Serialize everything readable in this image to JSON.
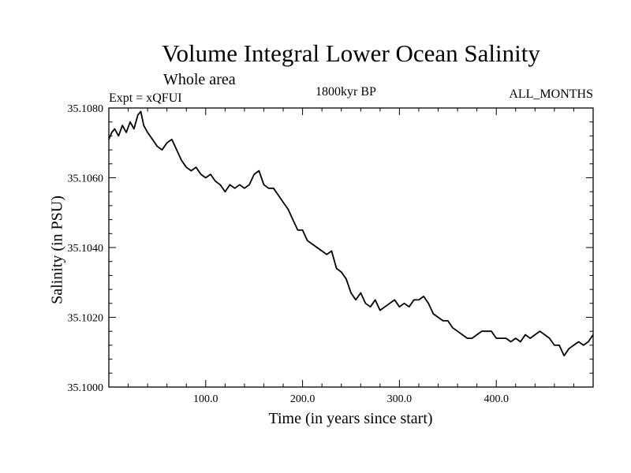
{
  "chart_data": {
    "type": "line",
    "title": "Volume Integral Lower Ocean Salinity",
    "subtitle": "Whole area",
    "experiment_label": "Expt = xQFUI",
    "center_label": "1800kyr BP",
    "right_label": "ALL_MONTHS",
    "xlabel": "Time (in years since start)",
    "ylabel": "Salinity (in PSU)",
    "xlim": [
      0,
      500
    ],
    "ylim": [
      35.1,
      35.108
    ],
    "x_ticks": [
      100.0,
      200.0,
      300.0,
      400.0
    ],
    "x_tick_labels": [
      "100.0",
      "200.0",
      "300.0",
      "400.0"
    ],
    "y_ticks": [
      35.1,
      35.102,
      35.104,
      35.106,
      35.108
    ],
    "y_tick_labels": [
      "35.1000",
      "35.1020",
      "35.1040",
      "35.1060",
      "35.1080"
    ],
    "series": [
      {
        "name": "Salinity",
        "color": "#000000",
        "x": [
          0,
          3,
          6,
          10,
          14,
          18,
          22,
          26,
          30,
          33,
          36,
          40,
          45,
          50,
          55,
          60,
          65,
          70,
          75,
          80,
          85,
          90,
          95,
          100,
          105,
          110,
          115,
          120,
          125,
          130,
          135,
          140,
          145,
          150,
          155,
          160,
          165,
          170,
          175,
          180,
          185,
          190,
          195,
          200,
          205,
          210,
          215,
          220,
          225,
          230,
          235,
          240,
          245,
          250,
          255,
          260,
          265,
          270,
          275,
          280,
          285,
          290,
          295,
          300,
          305,
          310,
          315,
          320,
          325,
          330,
          335,
          340,
          345,
          350,
          355,
          360,
          365,
          370,
          375,
          380,
          385,
          390,
          395,
          400,
          405,
          410,
          415,
          420,
          425,
          430,
          435,
          440,
          445,
          450,
          455,
          460,
          465,
          470,
          475,
          480,
          485,
          490,
          495,
          500
        ],
        "y": [
          35.1071,
          35.1073,
          35.1074,
          35.1072,
          35.1075,
          35.1073,
          35.1076,
          35.1074,
          35.1078,
          35.1079,
          35.1075,
          35.1073,
          35.1071,
          35.1069,
          35.1068,
          35.107,
          35.1071,
          35.1068,
          35.1065,
          35.1063,
          35.1062,
          35.1063,
          35.1061,
          35.106,
          35.1061,
          35.1059,
          35.1058,
          35.1056,
          35.1058,
          35.1057,
          35.1058,
          35.1057,
          35.1058,
          35.1061,
          35.1062,
          35.1058,
          35.1057,
          35.1057,
          35.1055,
          35.1053,
          35.1051,
          35.1048,
          35.1045,
          35.1045,
          35.1042,
          35.1041,
          35.104,
          35.1039,
          35.1038,
          35.1039,
          35.1034,
          35.1033,
          35.1031,
          35.1027,
          35.1025,
          35.1027,
          35.1024,
          35.1023,
          35.1025,
          35.1022,
          35.1023,
          35.1024,
          35.1025,
          35.1023,
          35.1024,
          35.1023,
          35.1025,
          35.1025,
          35.1026,
          35.1024,
          35.1021,
          35.102,
          35.1019,
          35.1019,
          35.1017,
          35.1016,
          35.1015,
          35.1014,
          35.1014,
          35.1015,
          35.1016,
          35.1016,
          35.1016,
          35.1014,
          35.1014,
          35.1014,
          35.1013,
          35.1014,
          35.1013,
          35.1015,
          35.1014,
          35.1015,
          35.1016,
          35.1015,
          35.1014,
          35.1012,
          35.1012,
          35.1009,
          35.1011,
          35.1012,
          35.1013,
          35.1012,
          35.1013,
          35.1015
        ]
      }
    ]
  }
}
